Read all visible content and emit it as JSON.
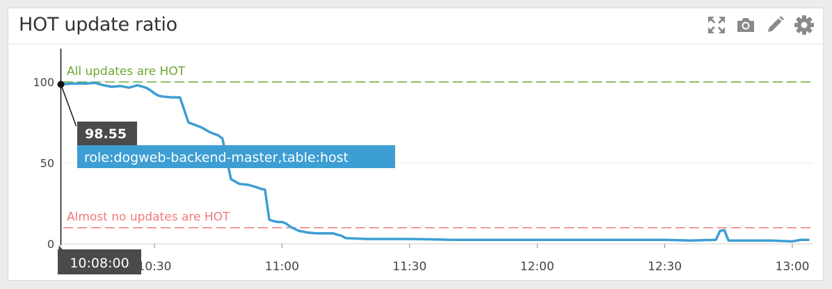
{
  "widget": {
    "title": "HOT update ratio",
    "tools": [
      {
        "name": "expand-icon",
        "label": "Expand"
      },
      {
        "name": "camera-icon",
        "label": "Snapshot"
      },
      {
        "name": "pencil-icon",
        "label": "Edit"
      },
      {
        "name": "gear-icon",
        "label": "Settings"
      }
    ]
  },
  "colors": {
    "series": "#3d9ed3",
    "marker_high": "#6aa832",
    "marker_low": "#f07a7a",
    "tooltip_dark": "#4a4a4a",
    "tooltip_series": "#3d9ed3"
  },
  "chart_data": {
    "type": "line",
    "title": "HOT update ratio",
    "xlabel": "",
    "ylabel": "",
    "x_ticks": [
      "10:30",
      "11:00",
      "11:30",
      "12:00",
      "12:30",
      "13:00"
    ],
    "y_ticks": [
      0,
      50,
      100
    ],
    "ylim": [
      0,
      120
    ],
    "xlim": [
      "10:08:00",
      "13:04:00"
    ],
    "grid": "horizontal",
    "markers": [
      {
        "label": "All updates are HOT",
        "value": 100,
        "style": "dashed",
        "color": "#6aa832"
      },
      {
        "label": "Almost no updates are HOT",
        "value": 10,
        "style": "dashed",
        "color": "#f07a7a"
      }
    ],
    "series": [
      {
        "name": "role:dogweb-backend-master,table:host",
        "x": [
          "10:08",
          "10:11",
          "10:14",
          "10:16",
          "10:18",
          "10:20",
          "10:22",
          "10:24",
          "10:26",
          "10:28",
          "10:29",
          "10:30",
          "10:31",
          "10:32",
          "10:34",
          "10:36",
          "10:38",
          "10:40",
          "10:41",
          "10:42",
          "10:43",
          "10:44",
          "10:45",
          "10:46",
          "10:48",
          "10:50",
          "10:52",
          "10:54",
          "10:55",
          "10:56",
          "10:57",
          "10:58",
          "10:59",
          "11:00",
          "11:01",
          "11:02",
          "11:04",
          "11:06",
          "11:08",
          "11:10",
          "11:12",
          "11:14",
          "11:15",
          "11:20",
          "11:30",
          "11:40",
          "11:50",
          "12:00",
          "12:10",
          "12:20",
          "12:30",
          "12:36",
          "12:42",
          "12:43",
          "12:44",
          "12:45",
          "12:50",
          "12:55",
          "13:00",
          "13:02",
          "13:04"
        ],
        "y": [
          98.55,
          99,
          99,
          99.5,
          98,
          97,
          97.5,
          96.5,
          98,
          96.5,
          95,
          93,
          91.5,
          91,
          90.5,
          90.5,
          75,
          73,
          72,
          70.5,
          69,
          68,
          67,
          65,
          40,
          37,
          36.5,
          35,
          34,
          33.5,
          15,
          14,
          13.5,
          13.5,
          12.5,
          10.5,
          8,
          7,
          6.5,
          6.5,
          6.5,
          5,
          3.5,
          3,
          3,
          2.5,
          2.5,
          2.5,
          2.5,
          2.5,
          2.5,
          2,
          2.5,
          8,
          8.5,
          2,
          2,
          2,
          1.5,
          2.5,
          2.5
        ]
      }
    ],
    "tooltip": {
      "time": "10:08:00",
      "value": "98.55",
      "series_label": "role:dogweb-backend-master,table:host"
    }
  }
}
